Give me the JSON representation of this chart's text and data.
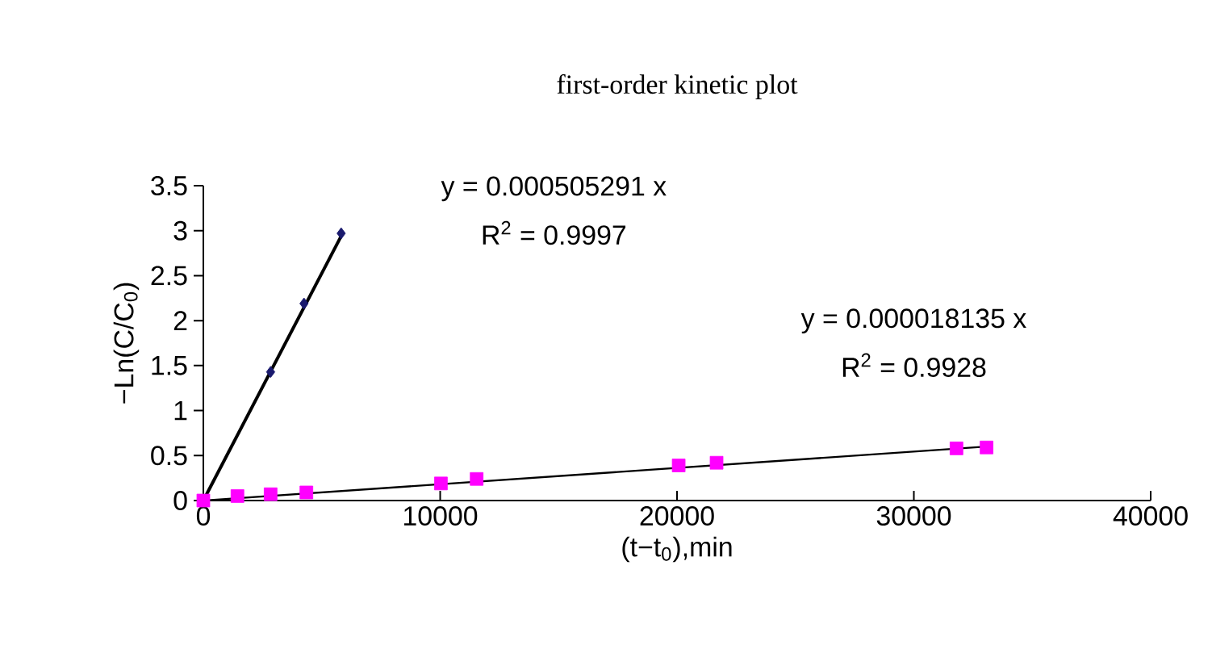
{
  "chart_data": {
    "type": "scatter",
    "title": "first-order kinetic plot",
    "xlabel": "(t−t$_{0}$),min",
    "ylabel": "−Ln(C/C$_{0}$)",
    "xlim": [
      0,
      40000
    ],
    "xticks": [
      0,
      10000,
      20000,
      30000,
      40000
    ],
    "ylim": [
      0,
      3.5
    ],
    "yticks": [
      0,
      0.5,
      1,
      1.5,
      2,
      2.5,
      3,
      3.5
    ],
    "grid": false,
    "series": [
      {
        "color": "#1a1a6e",
        "marker": "diamond",
        "x": [
          2840,
          4250,
          5820
        ],
        "values": [
          1.43,
          2.19,
          2.97
        ]
      },
      {
        "color": "#ff00ff",
        "marker": "square",
        "x": [
          0,
          1440,
          2840,
          4350,
          10030,
          11540,
          20070,
          21670,
          31800,
          33070
        ],
        "values": [
          0,
          0.05,
          0.07,
          0.09,
          0.19,
          0.24,
          0.39,
          0.42,
          0.58,
          0.59
        ]
      },
      {
        "type": "line",
        "color": "#000000",
        "marker": "none",
        "x": [
          0,
          5820
        ],
        "values": [
          0,
          2.94
        ]
      },
      {
        "type": "line",
        "color": "#000000",
        "marker": "none",
        "x": [
          0,
          33070
        ],
        "values": [
          0,
          0.6
        ]
      }
    ],
    "annotations": [
      "y = 0.000505291 x",
      "R$^{2}$ = 0.9997",
      "y = 0.000018135 x",
      "R$^{2}$ = 0.9928"
    ]
  }
}
